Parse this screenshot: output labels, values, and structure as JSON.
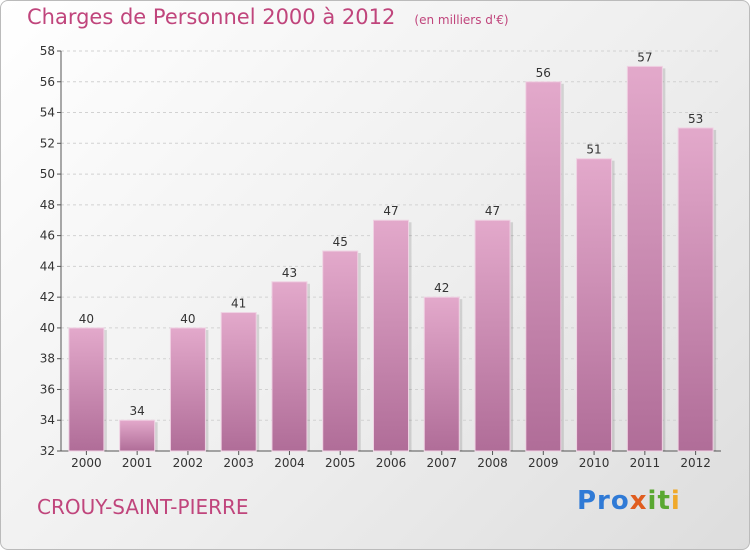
{
  "chart_data": {
    "type": "bar",
    "title": "Charges de Personnel 2000 à 2012",
    "subtitle": "(en milliers d'€)",
    "categories": [
      "2000",
      "2001",
      "2002",
      "2003",
      "2004",
      "2005",
      "2006",
      "2007",
      "2008",
      "2009",
      "2010",
      "2011",
      "2012"
    ],
    "values": [
      40,
      34,
      40,
      41,
      43,
      45,
      47,
      42,
      47,
      56,
      51,
      57,
      53
    ],
    "ylim": [
      32,
      58
    ],
    "yticks": [
      32,
      34,
      36,
      38,
      40,
      42,
      44,
      46,
      48,
      50,
      52,
      54,
      56,
      58
    ],
    "grid": true,
    "xlabel": "",
    "ylabel": "",
    "bar_color_top": "#e3a9cb",
    "bar_color_bottom": "#b06d98"
  },
  "footer": {
    "location": "CROUY-SAINT-PIERRE",
    "logo_parts": [
      "Pro",
      "x",
      "it",
      "i"
    ]
  },
  "colors": {
    "accent": "#c0457c"
  }
}
